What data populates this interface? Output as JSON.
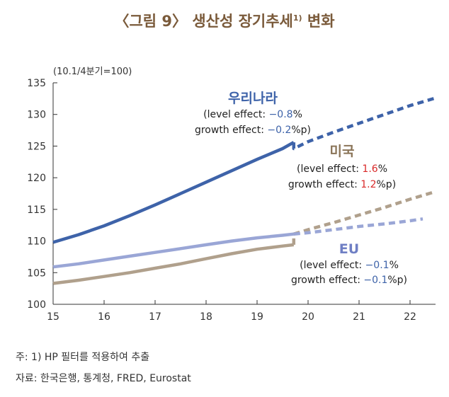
{
  "page": {
    "title": "〈그림 9〉 생산성 장기추세",
    "title_sup": "1)",
    "title_suffix": " 변화",
    "footnote1": "주: 1) HP 필터를 적용하여 추출",
    "footnote2": "자료: 한국은행, 통계청, FRED, Eurostat"
  },
  "chart_data": {
    "type": "line",
    "unit_label": "(10.1/4분기=100)",
    "x_ticks": [
      "15",
      "16",
      "17",
      "18",
      "19",
      "20",
      "21",
      "22"
    ],
    "y_ticks": [
      "100",
      "105",
      "110",
      "115",
      "120",
      "125",
      "130",
      "135"
    ],
    "xlim": [
      15,
      22.5
    ],
    "ylim": [
      100,
      135
    ],
    "series": [
      {
        "name": "우리나라",
        "color": "#3e63a9",
        "actual": {
          "x": [
            15.0,
            15.5,
            16.0,
            16.5,
            17.0,
            17.5,
            18.0,
            18.5,
            19.0,
            19.5,
            19.72
          ],
          "y": [
            109.8,
            111.0,
            112.4,
            114.0,
            115.7,
            117.5,
            119.3,
            121.1,
            122.9,
            124.6,
            125.6
          ]
        },
        "projected": {
          "x": [
            19.72,
            19.72,
            20.0,
            20.5,
            21.0,
            21.5,
            22.0,
            22.5
          ],
          "y": [
            125.6,
            124.6,
            125.7,
            127.2,
            128.6,
            130.0,
            131.4,
            132.6
          ]
        }
      },
      {
        "name": "미국",
        "color": "#b0a08c",
        "actual": {
          "x": [
            15.0,
            15.5,
            16.0,
            16.5,
            17.0,
            17.5,
            18.0,
            18.5,
            19.0,
            19.5,
            19.72
          ],
          "y": [
            103.3,
            103.8,
            104.4,
            105.0,
            105.7,
            106.4,
            107.2,
            108.0,
            108.7,
            109.2,
            109.4
          ]
        },
        "projected": {
          "x": [
            19.72,
            19.72,
            20.0,
            20.5,
            21.0,
            21.5,
            22.0,
            22.5
          ],
          "y": [
            109.4,
            111.1,
            111.8,
            112.9,
            114.1,
            115.3,
            116.6,
            117.8
          ]
        }
      },
      {
        "name": "EU",
        "color": "#9aa6d6",
        "actual": {
          "x": [
            15.0,
            15.5,
            16.0,
            16.5,
            17.0,
            17.5,
            18.0,
            18.5,
            19.0,
            19.5,
            19.72
          ],
          "y": [
            105.9,
            106.4,
            107.0,
            107.6,
            108.2,
            108.8,
            109.4,
            110.0,
            110.5,
            110.9,
            111.1
          ]
        },
        "projected": {
          "x": [
            19.72,
            20.0,
            20.5,
            21.0,
            21.5,
            22.0,
            22.25
          ],
          "y": [
            111.1,
            111.3,
            111.8,
            112.3,
            112.7,
            113.2,
            113.5
          ]
        }
      }
    ],
    "annotations": [
      {
        "id": "korea",
        "title": "우리나라",
        "title_color": "#3e63a9",
        "line1_prefix": "(level effect: ",
        "line1_value": "−0.8",
        "line1_suffix": "%",
        "line2_prefix": "growth effect: ",
        "line2_value": "−0.2",
        "line2_suffix": "%p)",
        "value_color": "#3e63a9"
      },
      {
        "id": "us",
        "title": "미국",
        "title_color": "#8a7458",
        "line1_prefix": "(level effect: ",
        "line1_value": "1.6",
        "line1_suffix": "%",
        "line2_prefix": "growth effect: ",
        "line2_value": "1.2",
        "line2_suffix": "%p)",
        "value_color": "#d92a2a"
      },
      {
        "id": "eu",
        "title": "EU",
        "title_color": "#6f7fc4",
        "line1_prefix": "(level effect: ",
        "line1_value": "−0.1",
        "line1_suffix": "%",
        "line2_prefix": "growth effect: ",
        "line2_value": "−0.1",
        "line2_suffix": "%p)",
        "value_color": "#3e63a9"
      }
    ]
  }
}
